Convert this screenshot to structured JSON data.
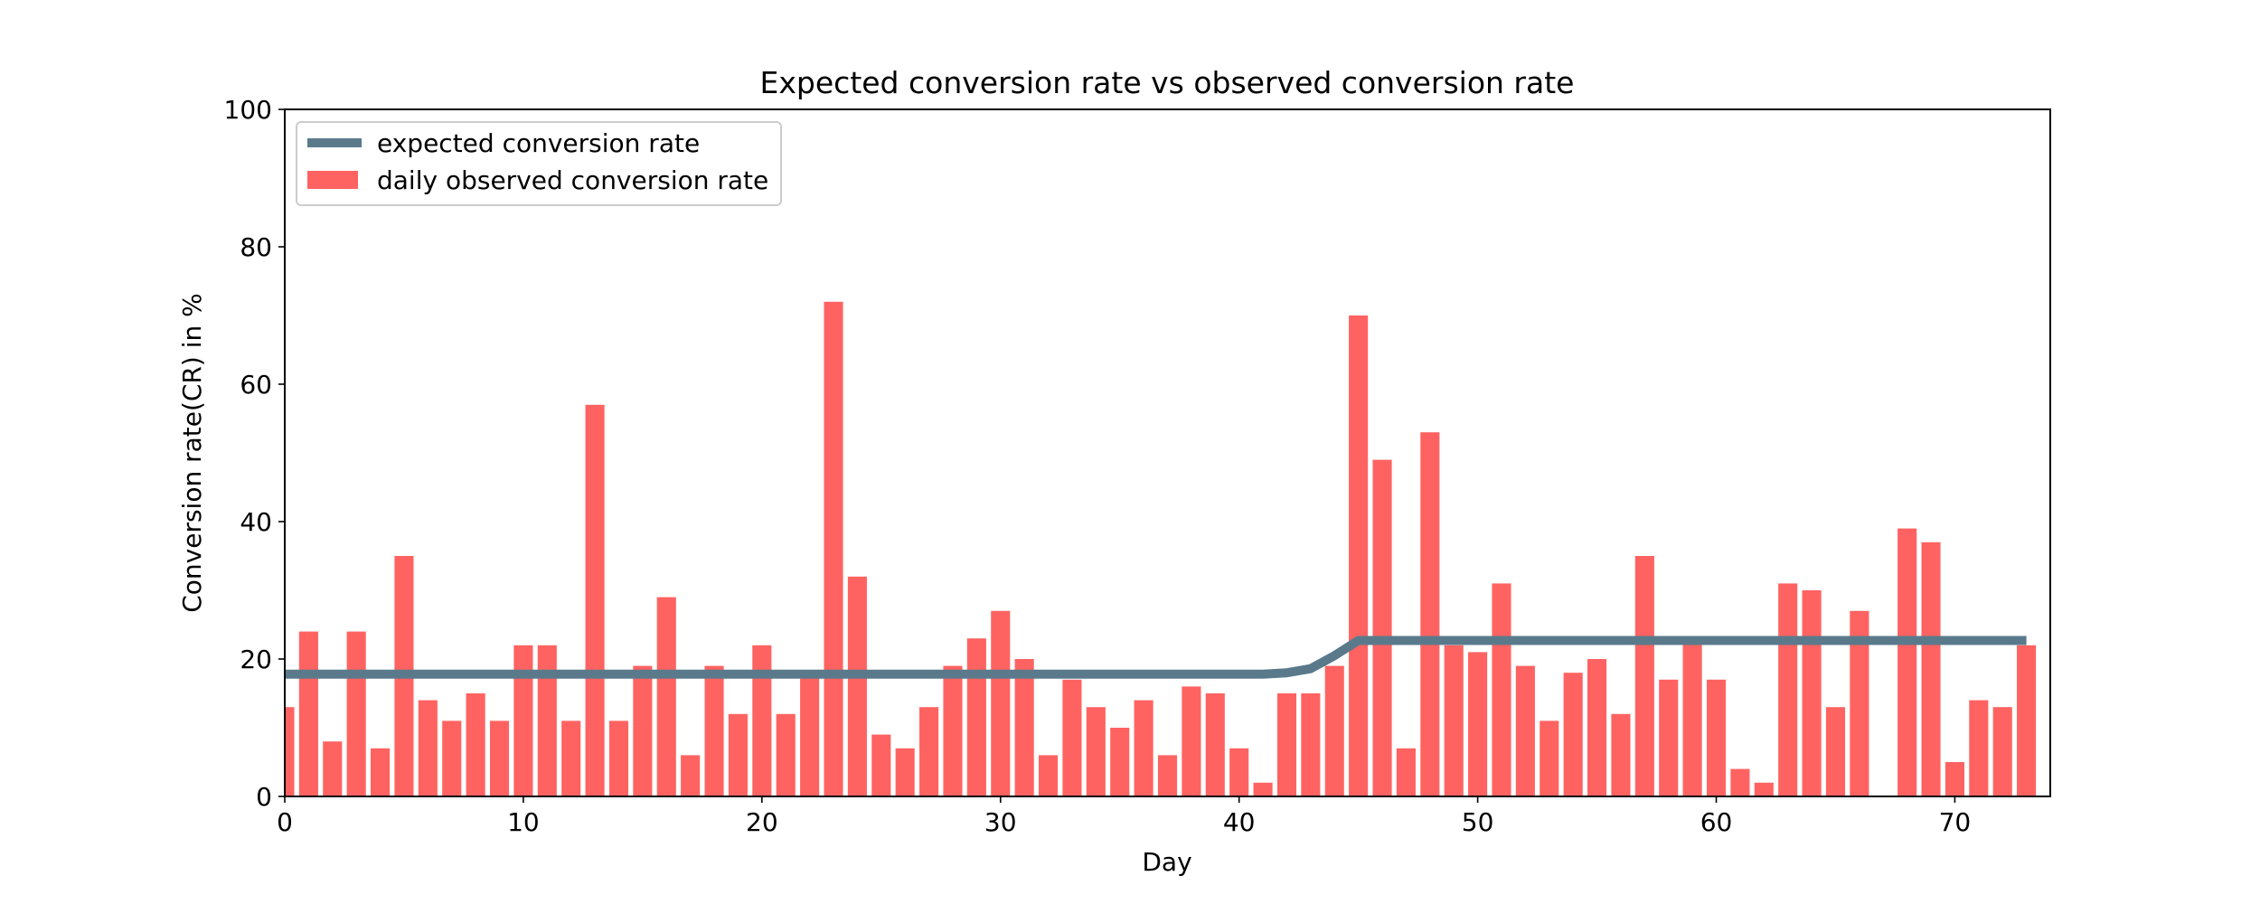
{
  "chart_data": {
    "type": "bar",
    "title": "Expected conversion rate vs observed conversion rate",
    "xlabel": "Day",
    "ylabel": "Conversion rate(CR) in %",
    "xlim": [
      0,
      74
    ],
    "ylim": [
      0,
      100
    ],
    "xticks": [
      0,
      10,
      20,
      30,
      40,
      50,
      60,
      70
    ],
    "yticks": [
      0,
      20,
      40,
      60,
      80,
      100
    ],
    "grid": false,
    "legend_position": "top-left",
    "series": [
      {
        "name": "expected conversion rate",
        "type": "line",
        "color": "#5a7a8c",
        "x": [
          0,
          41,
          42,
          43,
          44,
          45,
          73
        ],
        "values": [
          17.8,
          17.8,
          18.0,
          18.6,
          20.5,
          22.7,
          22.7
        ]
      },
      {
        "name": "daily observed conversion rate",
        "type": "bar",
        "color": "#ff6361",
        "x": [
          0,
          1,
          2,
          3,
          4,
          5,
          6,
          7,
          8,
          9,
          10,
          11,
          12,
          13,
          14,
          15,
          16,
          17,
          18,
          19,
          20,
          21,
          22,
          23,
          24,
          25,
          26,
          27,
          28,
          29,
          30,
          31,
          32,
          33,
          34,
          35,
          36,
          37,
          38,
          39,
          40,
          41,
          42,
          43,
          44,
          45,
          46,
          47,
          48,
          49,
          50,
          51,
          52,
          53,
          54,
          55,
          56,
          57,
          58,
          59,
          60,
          61,
          62,
          63,
          64,
          65,
          66,
          67,
          68,
          69,
          70,
          71,
          72,
          73
        ],
        "values": [
          13,
          24,
          8,
          24,
          7,
          35,
          14,
          11,
          15,
          11,
          22,
          22,
          11,
          57,
          11,
          19,
          29,
          6,
          19,
          12,
          22,
          12,
          18,
          72,
          32,
          9,
          7,
          13,
          19,
          23,
          27,
          20,
          6,
          17,
          13,
          10,
          14,
          6,
          16,
          15,
          7,
          2,
          15,
          15,
          19,
          70,
          49,
          7,
          53,
          22,
          21,
          31,
          19,
          11,
          18,
          20,
          12,
          35,
          17,
          23,
          17,
          4,
          2,
          31,
          30,
          13,
          27,
          0,
          39,
          37,
          5,
          14,
          13,
          22
        ]
      }
    ]
  }
}
